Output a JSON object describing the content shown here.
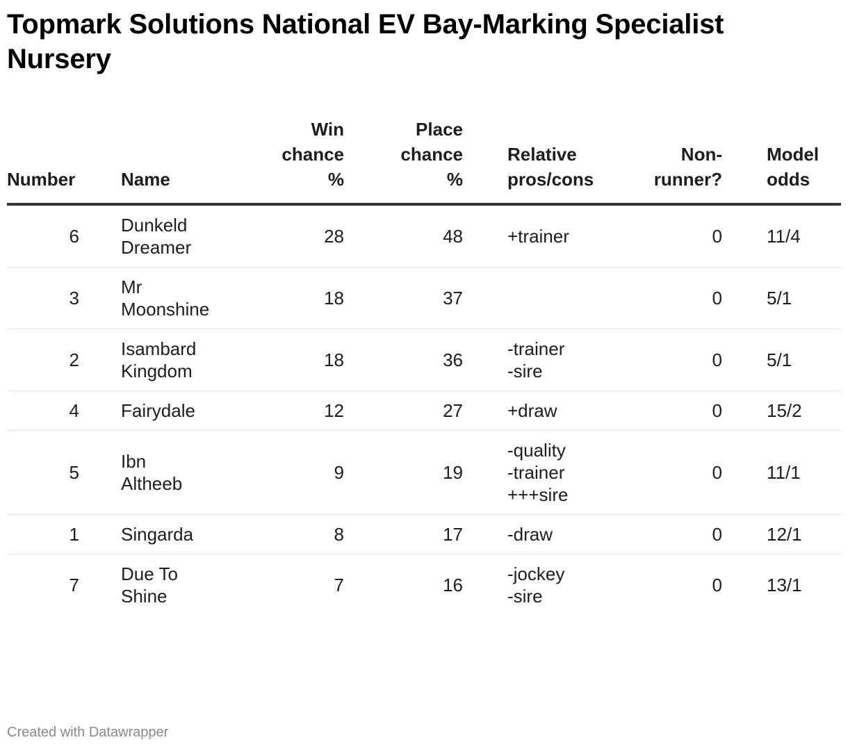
{
  "title": "Topmark Solutions National EV Bay-Marking Specialist Nursery",
  "columns": {
    "number": "Number",
    "name": "Name",
    "win": [
      "Win",
      "chance",
      "%"
    ],
    "place": [
      "Place",
      "chance",
      "%"
    ],
    "relative": [
      "Relative",
      "pros/cons"
    ],
    "nonrunner": [
      "Non-",
      "runner?"
    ],
    "odds": [
      "Model",
      "odds"
    ]
  },
  "rows": [
    {
      "number": "6",
      "name": [
        "Dunkeld",
        "Dreamer"
      ],
      "win": "28",
      "place": "48",
      "relative": [
        "+trainer"
      ],
      "nonrunner": "0",
      "odds": "11/4"
    },
    {
      "number": "3",
      "name": [
        "Mr",
        "Moonshine"
      ],
      "win": "18",
      "place": "37",
      "relative": [],
      "nonrunner": "0",
      "odds": "5/1"
    },
    {
      "number": "2",
      "name": [
        "Isambard",
        "Kingdom"
      ],
      "win": "18",
      "place": "36",
      "relative": [
        "-trainer",
        "-sire"
      ],
      "nonrunner": "0",
      "odds": "5/1"
    },
    {
      "number": "4",
      "name": [
        "Fairydale"
      ],
      "win": "12",
      "place": "27",
      "relative": [
        "+draw"
      ],
      "nonrunner": "0",
      "odds": "15/2"
    },
    {
      "number": "5",
      "name": [
        "Ibn",
        "Altheeb"
      ],
      "win": "9",
      "place": "19",
      "relative": [
        "-quality",
        "-trainer",
        "+++sire"
      ],
      "nonrunner": "0",
      "odds": "11/1"
    },
    {
      "number": "1",
      "name": [
        "Singarda"
      ],
      "win": "8",
      "place": "17",
      "relative": [
        "-draw"
      ],
      "nonrunner": "0",
      "odds": "12/1"
    },
    {
      "number": "7",
      "name": [
        "Due To",
        "Shine"
      ],
      "win": "7",
      "place": "16",
      "relative": [
        "-jockey",
        "-sire"
      ],
      "nonrunner": "0",
      "odds": "13/1"
    }
  ],
  "footer": "Created with Datawrapper"
}
